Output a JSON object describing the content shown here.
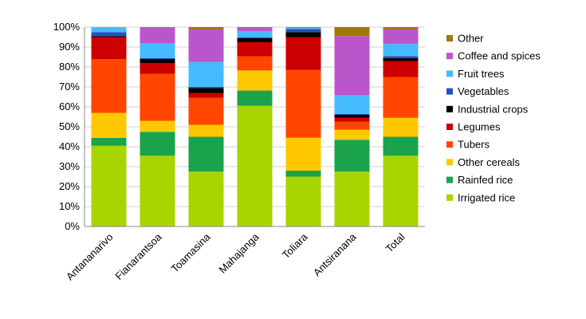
{
  "chart_data": {
    "type": "bar",
    "stacked": true,
    "percent_stacked": true,
    "categories": [
      "Antananarivo",
      "Fianarantsoa",
      "Toamasina",
      "Mahajanga",
      "Toliara",
      "Antsiranana",
      "Total"
    ],
    "series": [
      {
        "name": "Irrigated rice",
        "color": "#a8d400",
        "values": [
          40.5,
          35.5,
          27.5,
          60.0,
          25.0,
          27.5,
          35.5
        ]
      },
      {
        "name": "Rainfed rice",
        "color": "#1aa34a",
        "values": [
          4.0,
          12.0,
          17.5,
          7.5,
          3.0,
          16.0,
          9.5
        ]
      },
      {
        "name": "Other cereals",
        "color": "#ffc800",
        "values": [
          12.5,
          5.5,
          6.0,
          10.0,
          16.5,
          5.0,
          9.5
        ]
      },
      {
        "name": "Tubers",
        "color": "#ff4500",
        "values": [
          27.0,
          23.5,
          13.5,
          7.0,
          34.0,
          4.0,
          20.5
        ]
      },
      {
        "name": "Legumes",
        "color": "#cc0000",
        "values": [
          11.0,
          5.5,
          2.5,
          7.0,
          16.5,
          2.0,
          8.0
        ]
      },
      {
        "name": "Industrial crops",
        "color": "#000000",
        "values": [
          0.5,
          2.0,
          2.5,
          2.0,
          2.5,
          1.5,
          1.5
        ]
      },
      {
        "name": "Vegetables",
        "color": "#2255bb",
        "values": [
          2.0,
          0.5,
          0.5,
          0.5,
          1.5,
          0.5,
          1.0
        ]
      },
      {
        "name": "Fruit trees",
        "color": "#44bbff",
        "values": [
          2.5,
          7.5,
          12.5,
          3.0,
          0.5,
          9.5,
          6.0
        ]
      },
      {
        "name": "Coffee and spices",
        "color": "#bb55cc",
        "values": [
          0.0,
          8.0,
          16.5,
          2.0,
          0.5,
          29.5,
          7.5
        ]
      },
      {
        "name": "Other",
        "color": "#a07800",
        "values": [
          0.0,
          0.0,
          1.0,
          0.0,
          0.0,
          4.5,
          1.0
        ]
      }
    ],
    "yticks": [
      "0%",
      "10%",
      "20%",
      "30%",
      "40%",
      "50%",
      "60%",
      "70%",
      "80%",
      "90%",
      "100%"
    ],
    "ylim": [
      0,
      100
    ],
    "grid": true,
    "legend_position": "right",
    "legend_order": [
      "Other",
      "Coffee and spices",
      "Fruit trees",
      "Vegetables",
      "Industrial crops",
      "Legumes",
      "Tubers",
      "Other cereals",
      "Rainfed rice",
      "Irrigated rice"
    ]
  }
}
